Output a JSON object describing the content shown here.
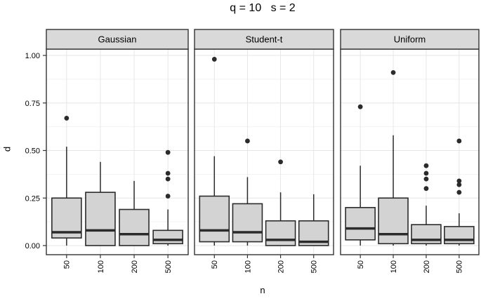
{
  "chart_data": {
    "type": "boxplot",
    "title": "q = 10   s = 2",
    "xlabel": "n",
    "ylabel": "d",
    "ylim": [
      -0.05,
      1.05
    ],
    "yticks": [
      {
        "value": 1.0,
        "label": "1.00"
      },
      {
        "value": 0.75,
        "label": "0.75"
      },
      {
        "value": 0.5,
        "label": "0.50"
      },
      {
        "value": 0.25,
        "label": "0.25"
      },
      {
        "value": 0.0,
        "label": "0.00"
      }
    ],
    "yminor": [
      0.125,
      0.375,
      0.625,
      0.875
    ],
    "categories": [
      "50",
      "100",
      "200",
      "500"
    ],
    "grid": true,
    "legend": "none",
    "facets": [
      {
        "label": "Gaussian",
        "boxes": [
          {
            "cat": "50",
            "low": 0.0,
            "q1": 0.04,
            "med": 0.07,
            "q3": 0.25,
            "high": 0.52,
            "outliers": [
              0.67
            ]
          },
          {
            "cat": "100",
            "low": 0.0,
            "q1": 0.0,
            "med": 0.08,
            "q3": 0.28,
            "high": 0.44,
            "outliers": []
          },
          {
            "cat": "200",
            "low": 0.0,
            "q1": 0.0,
            "med": 0.06,
            "q3": 0.19,
            "high": 0.34,
            "outliers": []
          },
          {
            "cat": "500",
            "low": 0.0,
            "q1": 0.01,
            "med": 0.03,
            "q3": 0.08,
            "high": 0.19,
            "outliers": [
              0.49,
              0.38,
              0.35,
              0.26
            ]
          }
        ]
      },
      {
        "label": "Student-t",
        "boxes": [
          {
            "cat": "50",
            "low": 0.0,
            "q1": 0.02,
            "med": 0.08,
            "q3": 0.26,
            "high": 0.47,
            "outliers": [
              0.98
            ]
          },
          {
            "cat": "100",
            "low": 0.0,
            "q1": 0.02,
            "med": 0.07,
            "q3": 0.22,
            "high": 0.36,
            "outliers": [
              0.55
            ]
          },
          {
            "cat": "200",
            "low": 0.0,
            "q1": 0.0,
            "med": 0.03,
            "q3": 0.13,
            "high": 0.28,
            "outliers": [
              0.44
            ]
          },
          {
            "cat": "500",
            "low": 0.0,
            "q1": 0.0,
            "med": 0.02,
            "q3": 0.13,
            "high": 0.27,
            "outliers": []
          }
        ]
      },
      {
        "label": "Uniform",
        "boxes": [
          {
            "cat": "50",
            "low": 0.0,
            "q1": 0.03,
            "med": 0.09,
            "q3": 0.2,
            "high": 0.42,
            "outliers": [
              0.73
            ]
          },
          {
            "cat": "100",
            "low": 0.0,
            "q1": 0.01,
            "med": 0.06,
            "q3": 0.25,
            "high": 0.58,
            "outliers": [
              0.91
            ]
          },
          {
            "cat": "200",
            "low": 0.0,
            "q1": 0.01,
            "med": 0.03,
            "q3": 0.11,
            "high": 0.21,
            "outliers": [
              0.42,
              0.38,
              0.35,
              0.3
            ]
          },
          {
            "cat": "500",
            "low": 0.0,
            "q1": 0.01,
            "med": 0.03,
            "q3": 0.1,
            "high": 0.17,
            "outliers": [
              0.55,
              0.34,
              0.32,
              0.28
            ]
          }
        ]
      }
    ]
  },
  "colors": {
    "box_fill": "#d3d3d3",
    "box_stroke": "#2b2b2b",
    "median": "#2b2b2b",
    "outlier": "#2b2b2b",
    "strip_fill": "#d9d9d9",
    "strip_border": "#333333",
    "panel_border": "#333333",
    "panel_bg": "#ffffff",
    "grid_major": "#e6e6e6",
    "grid_minor": "#f2f2f2",
    "tick": "#333333",
    "text": "#000000"
  }
}
